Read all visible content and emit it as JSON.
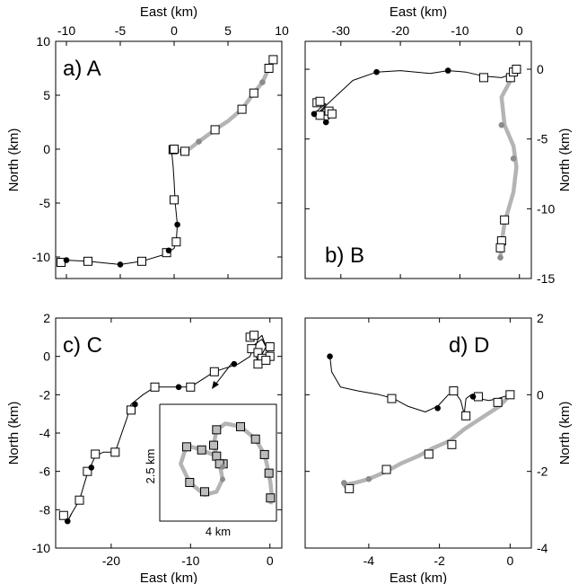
{
  "colors": {
    "black_track": "#000000",
    "gray_track": "#b4b4b4",
    "gray_dot": "#8c8c8c",
    "square_fill": "#ffffff",
    "square_fill_gray": "#bdbdbd"
  },
  "chart_data": [
    {
      "type": "line",
      "panel_label": "a) A",
      "xlabel": "East (km)",
      "xlabel_position": "top",
      "ylabel": "North (km)",
      "ylabel_position": "left",
      "xlim": [
        -11,
        10
      ],
      "ylim": [
        -12,
        10
      ],
      "xticks": [
        -10,
        -5,
        0,
        5,
        10
      ],
      "yticks": [
        -10,
        -5,
        0,
        5,
        10
      ],
      "series": [
        {
          "style": "black",
          "x": [
            -10.5,
            -10,
            -8,
            -6,
            -5,
            -3,
            -1,
            0,
            0.2,
            0.3,
            0.1,
            0.0,
            -0.1,
            -0.2,
            -0.1,
            0
          ],
          "y": [
            -10.5,
            -10.3,
            -10.4,
            -10.6,
            -10.7,
            -10.4,
            -9.8,
            -9.2,
            -8.5,
            -7,
            -5,
            -3,
            -1.5,
            -0.5,
            0,
            0
          ]
        },
        {
          "style": "gray",
          "x": [
            0,
            1,
            2.3,
            3.8,
            5,
            6.3,
            7.4,
            8.2,
            8.8,
            9.2
          ],
          "y": [
            0,
            -0.3,
            0.7,
            1.8,
            2.6,
            3.7,
            5.2,
            6.2,
            7.5,
            8.3
          ]
        }
      ],
      "squares": [
        [
          -10.5,
          -10.5
        ],
        [
          -8,
          -10.4
        ],
        [
          -3,
          -10.4
        ],
        [
          -0.7,
          -9.6
        ],
        [
          0.2,
          -8.6
        ],
        [
          0,
          -4.7
        ],
        [
          -0.1,
          -0.05
        ],
        [
          0,
          0
        ],
        [
          1,
          -0.2
        ],
        [
          3.8,
          1.8
        ],
        [
          6.3,
          3.7
        ],
        [
          7.4,
          5.2
        ],
        [
          8.8,
          7.5
        ],
        [
          9.2,
          8.3
        ]
      ],
      "dots": [
        [
          -10,
          -10.3,
          "black"
        ],
        [
          -5,
          -10.7,
          "black"
        ],
        [
          -0.5,
          -9.4,
          "black"
        ],
        [
          0.3,
          -7,
          "black"
        ],
        [
          2.3,
          0.7,
          "gray"
        ],
        [
          8.2,
          6.2,
          "gray"
        ]
      ]
    },
    {
      "type": "line",
      "panel_label": "b) B",
      "xlabel": "East (km)",
      "xlabel_position": "top",
      "ylabel": "North (km)",
      "ylabel_position": "right",
      "xlim": [
        -36,
        2
      ],
      "ylim": [
        -15,
        2
      ],
      "xticks": [
        -30,
        -20,
        -10,
        0
      ],
      "yticks": [
        -15,
        -10,
        -5,
        0
      ],
      "series": [
        {
          "style": "black",
          "x": [
            -34.5,
            -33.5,
            -32.5,
            -33.5,
            -31.5,
            -32.5,
            -33.5,
            -32.5,
            -31.5,
            -33.5,
            -34.5,
            -33,
            -31.5,
            -30,
            -28,
            -24,
            -20,
            -15,
            -12,
            -9,
            -6,
            -3,
            -1,
            0
          ],
          "y": [
            -3.2,
            -2.8,
            -2.5,
            -2.3,
            -3.3,
            -3.8,
            -3.1,
            -2.7,
            -2.9,
            -3.3,
            -3.4,
            -2.8,
            -2.2,
            -1.6,
            -0.8,
            -0.2,
            -0.1,
            -0.3,
            -0.1,
            -0.2,
            -0.5,
            -0.6,
            -0.3,
            0
          ]
        },
        {
          "style": "gray",
          "x": [
            0,
            -1,
            -2,
            -3,
            -2.5,
            -1,
            -0.5,
            -1,
            -2.5,
            -3,
            -3.2
          ],
          "y": [
            0,
            -0.4,
            -1.2,
            -2,
            -4,
            -5.5,
            -7,
            -8.8,
            -11,
            -12.5,
            -13.5
          ]
        }
      ],
      "squares": [
        [
          -34,
          -2.4
        ],
        [
          -33.5,
          -2.3
        ],
        [
          -33.5,
          -3.3
        ],
        [
          -32,
          -3
        ],
        [
          -31.5,
          -3.2
        ],
        [
          -6,
          -0.6
        ],
        [
          -1.5,
          -0.6
        ],
        [
          -1,
          -0.2
        ],
        [
          -0.5,
          0
        ],
        [
          -2.5,
          -10.8
        ],
        [
          -3,
          -12.3
        ],
        [
          -3.2,
          -12.8
        ]
      ],
      "dots": [
        [
          -34.5,
          -3.2,
          "black"
        ],
        [
          -32.5,
          -3.8,
          "black"
        ],
        [
          -24,
          -0.2,
          "black"
        ],
        [
          -12,
          -0.1,
          "black"
        ],
        [
          -3,
          -4,
          "gray"
        ],
        [
          -1,
          -6.4,
          "gray"
        ],
        [
          -3.2,
          -13.5,
          "gray"
        ]
      ]
    },
    {
      "type": "line",
      "panel_label": "c) C",
      "xlabel": "East (km)",
      "xlabel_position": "bottom",
      "ylabel": "North (km)",
      "ylabel_position": "left",
      "xlim": [
        -27,
        1.5
      ],
      "ylim": [
        -10,
        2
      ],
      "xticks": [
        -20,
        -10,
        0
      ],
      "yticks": [
        -10,
        -8,
        -6,
        -4,
        -2,
        0,
        2
      ],
      "series": [
        {
          "style": "black",
          "x": [
            -25.5,
            -25,
            -24,
            -23,
            -22,
            -21,
            -19.5,
            -18,
            -17.5,
            -16,
            -14.5,
            -12,
            -10,
            -7,
            -4,
            -2.5,
            -2,
            -1,
            -0.5,
            -1,
            -1.5,
            -2,
            -1.5,
            -1,
            -0.5,
            0,
            -0.3
          ],
          "y": [
            -8.6,
            -8.2,
            -7.5,
            -6.1,
            -5.2,
            -5,
            -5,
            -3.2,
            -2.5,
            -2,
            -1.6,
            -1.6,
            -1.6,
            -0.8,
            -0.4,
            0,
            0.6,
            0.9,
            0.5,
            0.1,
            -0.3,
            0.3,
            0.9,
            1.1,
            0.5,
            0,
            0
          ]
        },
        {
          "style": "black",
          "x": [
            -25.5,
            -25
          ],
          "y": [
            -8.6,
            -8.2
          ]
        }
      ],
      "squares": [
        [
          -26,
          -8.3
        ],
        [
          -24,
          -7.5
        ],
        [
          -23,
          -6
        ],
        [
          -22,
          -5.1
        ],
        [
          -19.5,
          -5
        ],
        [
          -17.5,
          -2.8
        ],
        [
          -14.5,
          -1.6
        ],
        [
          -10,
          -1.6
        ],
        [
          -7,
          -0.8
        ],
        [
          -2.5,
          1
        ],
        [
          -2,
          1.1
        ],
        [
          -2.3,
          0.4
        ],
        [
          -1.5,
          0.2
        ],
        [
          -1,
          -0.1
        ],
        [
          -1.5,
          -0.4
        ],
        [
          0,
          0.5
        ],
        [
          0,
          0
        ],
        [
          -0.5,
          -0.2
        ]
      ],
      "dots": [
        [
          -25.5,
          -8.6,
          "black"
        ],
        [
          -22.5,
          -5.8,
          "black"
        ],
        [
          -17,
          -2.5,
          "black"
        ],
        [
          -11.5,
          -1.6,
          "black"
        ],
        [
          -4.5,
          -0.4,
          "black"
        ]
      ],
      "inset": {
        "width_label": "4 km",
        "height_label": "2.5 km",
        "x": [
          0.3,
          0.1,
          -0.4,
          -0.9,
          -1.1,
          -0.8,
          -0.3,
          0.1,
          0.3,
          0.2,
          0.0,
          0.1,
          0.4,
          0.9,
          1.4,
          1.7,
          1.8,
          1.9,
          1.95,
          1.9
        ],
        "y": [
          0.2,
          0.55,
          0.75,
          0.9,
          0.3,
          -0.3,
          -0.7,
          -0.6,
          -0.2,
          0.3,
          0.9,
          1.4,
          1.6,
          1.5,
          1.1,
          0.6,
          0.2,
          -0.3,
          -0.8,
          -1.0
        ],
        "squares": [
          [
            0.32,
            0.3
          ],
          [
            0.1,
            0.55
          ],
          [
            -0.4,
            0.75
          ],
          [
            -0.9,
            0.85
          ],
          [
            -0.8,
            -0.3
          ],
          [
            -0.3,
            -0.6
          ],
          [
            0.2,
            0.3
          ],
          [
            0.0,
            0.9
          ],
          [
            0.1,
            1.4
          ],
          [
            0.9,
            1.5
          ],
          [
            1.4,
            1.1
          ],
          [
            1.7,
            0.6
          ],
          [
            1.85,
            0.0
          ],
          [
            1.9,
            -0.8
          ]
        ],
        "dots": [
          [
            0.3,
            0.2
          ],
          [
            0.3,
            -0.2
          ]
        ]
      }
    },
    {
      "type": "line",
      "panel_label": "d) D",
      "xlabel": "East (km)",
      "xlabel_position": "bottom",
      "ylabel": "North (km)",
      "ylabel_position": "right",
      "xlim": [
        -5.8,
        0.6
      ],
      "ylim": [
        -4,
        2
      ],
      "xticks": [
        -4,
        -2,
        0
      ],
      "yticks": [
        -4,
        -2,
        0,
        2
      ],
      "series": [
        {
          "style": "black",
          "x": [
            -5.1,
            -5.05,
            -4.8,
            -4.3,
            -3.7,
            -3.3,
            -2.9,
            -2.4,
            -2.05,
            -1.75,
            -1.55,
            -1.4,
            -1.3,
            -1.25,
            -1.1,
            -0.9,
            -0.6,
            -0.35,
            0
          ],
          "y": [
            1.0,
            0.6,
            0.2,
            0.1,
            0.0,
            -0.1,
            -0.3,
            -0.45,
            -0.3,
            0.0,
            0.05,
            -0.15,
            -0.5,
            -0.1,
            0.0,
            -0.1,
            -0.15,
            -0.1,
            0
          ]
        },
        {
          "style": "gray",
          "x": [
            0,
            -0.3,
            -0.8,
            -1.3,
            -1.7,
            -2.2,
            -2.6,
            -3.1,
            -3.5,
            -4.0,
            -4.4,
            -4.7,
            -4.6
          ],
          "y": [
            0,
            -0.3,
            -0.6,
            -0.9,
            -1.2,
            -1.4,
            -1.6,
            -1.8,
            -2.0,
            -2.2,
            -2.3,
            -2.35,
            -2.45
          ]
        }
      ],
      "squares": [
        [
          -3.35,
          -0.1
        ],
        [
          -1.6,
          0.1
        ],
        [
          -1.25,
          -0.55
        ],
        [
          -0.9,
          -0.05
        ],
        [
          0,
          0
        ],
        [
          -0.35,
          -0.2
        ],
        [
          -1.65,
          -1.3
        ],
        [
          -2.3,
          -1.55
        ],
        [
          -3.5,
          -1.95
        ],
        [
          -4.55,
          -2.45
        ]
      ],
      "dots": [
        [
          -5.1,
          1.0,
          "black"
        ],
        [
          -2.05,
          -0.35,
          "black"
        ],
        [
          -1.05,
          -0.05,
          "black"
        ],
        [
          -4.7,
          -2.3,
          "gray"
        ],
        [
          -4.0,
          -2.2,
          "gray"
        ]
      ]
    }
  ]
}
